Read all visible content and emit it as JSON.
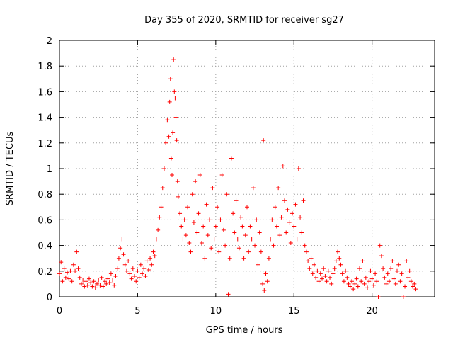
{
  "chart_data": {
    "type": "scatter",
    "title": "Day 355 of 2020, SRMTID for receiver sg27",
    "xlabel": "GPS time / hours",
    "ylabel": "SRMTID / TECUs",
    "xlim": [
      0,
      24
    ],
    "ylim": [
      0,
      2
    ],
    "xticks": [
      0,
      5,
      10,
      15,
      20
    ],
    "xtick_labels": [
      "0",
      "5",
      "10",
      "15",
      "20"
    ],
    "yticks": [
      0,
      0.2,
      0.4,
      0.6,
      0.8,
      1,
      1.2,
      1.4,
      1.6,
      1.8,
      2
    ],
    "ytick_labels": [
      "0",
      "0.2",
      "0.4",
      "0.6",
      "0.8",
      "1",
      "1.2",
      "1.4",
      "1.6",
      "1.8",
      "2"
    ],
    "grid": true,
    "marker": "+",
    "color": "#ff0000",
    "series": [
      {
        "name": "SRMTID",
        "points": [
          [
            0.0,
            0.18
          ],
          [
            0.1,
            0.27
          ],
          [
            0.2,
            0.12
          ],
          [
            0.3,
            0.22
          ],
          [
            0.4,
            0.15
          ],
          [
            0.5,
            0.19
          ],
          [
            0.6,
            0.14
          ],
          [
            0.7,
            0.2
          ],
          [
            0.8,
            0.12
          ],
          [
            0.9,
            0.25
          ],
          [
            1.0,
            0.2
          ],
          [
            1.1,
            0.35
          ],
          [
            1.2,
            0.22
          ],
          [
            1.3,
            0.15
          ],
          [
            1.4,
            0.1
          ],
          [
            1.5,
            0.13
          ],
          [
            1.6,
            0.08
          ],
          [
            1.7,
            0.12
          ],
          [
            1.8,
            0.09
          ],
          [
            1.9,
            0.14
          ],
          [
            2.0,
            0.11
          ],
          [
            2.1,
            0.08
          ],
          [
            2.2,
            0.12
          ],
          [
            2.3,
            0.07
          ],
          [
            2.4,
            0.1
          ],
          [
            2.5,
            0.13
          ],
          [
            2.6,
            0.09
          ],
          [
            2.7,
            0.15
          ],
          [
            2.8,
            0.08
          ],
          [
            2.9,
            0.12
          ],
          [
            3.0,
            0.1
          ],
          [
            3.1,
            0.14
          ],
          [
            3.2,
            0.11
          ],
          [
            3.3,
            0.18
          ],
          [
            3.4,
            0.13
          ],
          [
            3.5,
            0.09
          ],
          [
            3.6,
            0.16
          ],
          [
            3.7,
            0.22
          ],
          [
            3.8,
            0.3
          ],
          [
            3.9,
            0.38
          ],
          [
            4.0,
            0.45
          ],
          [
            4.1,
            0.33
          ],
          [
            4.2,
            0.25
          ],
          [
            4.3,
            0.2
          ],
          [
            4.4,
            0.28
          ],
          [
            4.5,
            0.18
          ],
          [
            4.6,
            0.14
          ],
          [
            4.7,
            0.22
          ],
          [
            4.8,
            0.16
          ],
          [
            4.9,
            0.12
          ],
          [
            5.0,
            0.2
          ],
          [
            5.1,
            0.15
          ],
          [
            5.2,
            0.25
          ],
          [
            5.3,
            0.18
          ],
          [
            5.4,
            0.22
          ],
          [
            5.5,
            0.16
          ],
          [
            5.6,
            0.28
          ],
          [
            5.7,
            0.21
          ],
          [
            5.8,
            0.3
          ],
          [
            5.9,
            0.25
          ],
          [
            6.0,
            0.35
          ],
          [
            6.1,
            0.32
          ],
          [
            6.2,
            0.45
          ],
          [
            6.3,
            0.52
          ],
          [
            6.4,
            0.62
          ],
          [
            6.5,
            0.7
          ],
          [
            6.6,
            0.85
          ],
          [
            6.7,
            1.0
          ],
          [
            6.8,
            1.2
          ],
          [
            6.9,
            1.38
          ],
          [
            7.0,
            1.25
          ],
          [
            7.05,
            1.52
          ],
          [
            7.1,
            1.7
          ],
          [
            7.15,
            1.08
          ],
          [
            7.2,
            0.95
          ],
          [
            7.25,
            1.28
          ],
          [
            7.3,
            1.85
          ],
          [
            7.35,
            1.6
          ],
          [
            7.4,
            1.55
          ],
          [
            7.45,
            1.4
          ],
          [
            7.5,
            1.22
          ],
          [
            7.55,
            0.9
          ],
          [
            7.6,
            0.78
          ],
          [
            7.7,
            0.65
          ],
          [
            7.8,
            0.55
          ],
          [
            7.9,
            0.45
          ],
          [
            8.0,
            0.6
          ],
          [
            8.1,
            0.48
          ],
          [
            8.2,
            0.7
          ],
          [
            8.3,
            0.42
          ],
          [
            8.4,
            0.35
          ],
          [
            8.5,
            0.8
          ],
          [
            8.6,
            0.58
          ],
          [
            8.7,
            0.9
          ],
          [
            8.8,
            0.5
          ],
          [
            8.9,
            0.65
          ],
          [
            9.0,
            0.95
          ],
          [
            9.1,
            0.42
          ],
          [
            9.2,
            0.55
          ],
          [
            9.3,
            0.3
          ],
          [
            9.4,
            0.72
          ],
          [
            9.5,
            0.48
          ],
          [
            9.6,
            0.6
          ],
          [
            9.7,
            0.38
          ],
          [
            9.8,
            0.85
          ],
          [
            9.9,
            0.45
          ],
          [
            10.0,
            0.55
          ],
          [
            10.1,
            0.7
          ],
          [
            10.2,
            0.35
          ],
          [
            10.3,
            0.6
          ],
          [
            10.4,
            0.95
          ],
          [
            10.5,
            0.52
          ],
          [
            10.6,
            0.4
          ],
          [
            10.7,
            0.8
          ],
          [
            10.8,
            0.02
          ],
          [
            10.9,
            0.3
          ],
          [
            11.0,
            1.08
          ],
          [
            11.1,
            0.65
          ],
          [
            11.2,
            0.5
          ],
          [
            11.3,
            0.75
          ],
          [
            11.4,
            0.45
          ],
          [
            11.5,
            0.38
          ],
          [
            11.6,
            0.62
          ],
          [
            11.7,
            0.55
          ],
          [
            11.8,
            0.3
          ],
          [
            11.9,
            0.48
          ],
          [
            12.0,
            0.7
          ],
          [
            12.1,
            0.35
          ],
          [
            12.2,
            0.55
          ],
          [
            12.3,
            0.45
          ],
          [
            12.4,
            0.85
          ],
          [
            12.5,
            0.4
          ],
          [
            12.6,
            0.6
          ],
          [
            12.7,
            0.25
          ],
          [
            12.8,
            0.5
          ],
          [
            12.9,
            0.35
          ],
          [
            13.0,
            0.1
          ],
          [
            13.05,
            1.22
          ],
          [
            13.1,
            0.05
          ],
          [
            13.2,
            0.18
          ],
          [
            13.3,
            0.12
          ],
          [
            13.4,
            0.3
          ],
          [
            13.5,
            0.45
          ],
          [
            13.6,
            0.6
          ],
          [
            13.7,
            0.4
          ],
          [
            13.8,
            0.7
          ],
          [
            13.9,
            0.55
          ],
          [
            14.0,
            0.85
          ],
          [
            14.1,
            0.48
          ],
          [
            14.2,
            0.62
          ],
          [
            14.3,
            1.02
          ],
          [
            14.4,
            0.75
          ],
          [
            14.5,
            0.5
          ],
          [
            14.6,
            0.68
          ],
          [
            14.7,
            0.58
          ],
          [
            14.8,
            0.42
          ],
          [
            14.9,
            0.65
          ],
          [
            15.0,
            0.55
          ],
          [
            15.1,
            0.72
          ],
          [
            15.2,
            0.45
          ],
          [
            15.3,
            1.0
          ],
          [
            15.4,
            0.62
          ],
          [
            15.5,
            0.5
          ],
          [
            15.6,
            0.75
          ],
          [
            15.7,
            0.4
          ],
          [
            15.8,
            0.35
          ],
          [
            15.9,
            0.28
          ],
          [
            16.0,
            0.22
          ],
          [
            16.1,
            0.3
          ],
          [
            16.2,
            0.18
          ],
          [
            16.3,
            0.25
          ],
          [
            16.4,
            0.15
          ],
          [
            16.5,
            0.2
          ],
          [
            16.6,
            0.12
          ],
          [
            16.7,
            0.18
          ],
          [
            16.8,
            0.14
          ],
          [
            16.9,
            0.22
          ],
          [
            17.0,
            0.16
          ],
          [
            17.1,
            0.12
          ],
          [
            17.2,
            0.2
          ],
          [
            17.3,
            0.15
          ],
          [
            17.4,
            0.1
          ],
          [
            17.5,
            0.18
          ],
          [
            17.6,
            0.22
          ],
          [
            17.7,
            0.28
          ],
          [
            17.8,
            0.35
          ],
          [
            17.9,
            0.3
          ],
          [
            18.0,
            0.25
          ],
          [
            18.1,
            0.18
          ],
          [
            18.2,
            0.12
          ],
          [
            18.3,
            0.2
          ],
          [
            18.4,
            0.15
          ],
          [
            18.5,
            0.1
          ],
          [
            18.6,
            0.08
          ],
          [
            18.7,
            0.12
          ],
          [
            18.8,
            0.06
          ],
          [
            18.9,
            0.1
          ],
          [
            19.0,
            0.14
          ],
          [
            19.1,
            0.08
          ],
          [
            19.2,
            0.22
          ],
          [
            19.3,
            0.12
          ],
          [
            19.4,
            0.28
          ],
          [
            19.5,
            0.1
          ],
          [
            19.6,
            0.15
          ],
          [
            19.7,
            0.07
          ],
          [
            19.8,
            0.12
          ],
          [
            19.9,
            0.2
          ],
          [
            20.0,
            0.14
          ],
          [
            20.1,
            0.09
          ],
          [
            20.2,
            0.18
          ],
          [
            20.3,
            0.12
          ],
          [
            20.4,
            0.0
          ],
          [
            20.5,
            0.4
          ],
          [
            20.6,
            0.32
          ],
          [
            20.7,
            0.22
          ],
          [
            20.8,
            0.15
          ],
          [
            20.9,
            0.1
          ],
          [
            21.0,
            0.18
          ],
          [
            21.1,
            0.12
          ],
          [
            21.2,
            0.22
          ],
          [
            21.3,
            0.28
          ],
          [
            21.4,
            0.14
          ],
          [
            21.5,
            0.1
          ],
          [
            21.6,
            0.2
          ],
          [
            21.7,
            0.25
          ],
          [
            21.8,
            0.12
          ],
          [
            21.9,
            0.18
          ],
          [
            22.0,
            0.0
          ],
          [
            22.1,
            0.08
          ],
          [
            22.2,
            0.28
          ],
          [
            22.3,
            0.15
          ],
          [
            22.4,
            0.2
          ],
          [
            22.5,
            0.12
          ],
          [
            22.6,
            0.08
          ],
          [
            22.7,
            0.1
          ],
          [
            22.8,
            0.06
          ]
        ]
      }
    ]
  }
}
